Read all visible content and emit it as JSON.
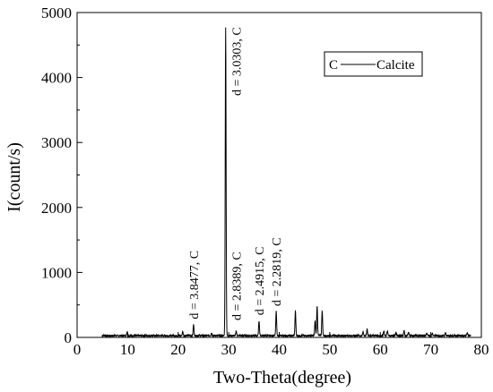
{
  "chart_data": {
    "type": "line",
    "title": "",
    "xlabel": "Two-Theta(degree)",
    "ylabel": "I(count/s)",
    "xlim": [
      0,
      80
    ],
    "ylim": [
      0,
      5000
    ],
    "xticks": [
      0,
      10,
      20,
      30,
      40,
      50,
      60,
      70,
      80
    ],
    "yticks": [
      0,
      1000,
      2000,
      3000,
      4000,
      5000
    ],
    "grid": false,
    "legend": {
      "position": "top-right",
      "entries": [
        {
          "marker": "C",
          "label": "Calcite"
        }
      ]
    },
    "series": [
      {
        "color": "#000000",
        "peaks": [
          {
            "x": 9.9,
            "y": 60
          },
          {
            "x": 20.9,
            "y": 60
          },
          {
            "x": 23.05,
            "y": 170
          },
          {
            "x": 26.6,
            "y": 40
          },
          {
            "x": 29.4,
            "y": 4750
          },
          {
            "x": 31.5,
            "y": 70
          },
          {
            "x": 36.0,
            "y": 230
          },
          {
            "x": 39.4,
            "y": 370
          },
          {
            "x": 43.2,
            "y": 380
          },
          {
            "x": 47.1,
            "y": 230
          },
          {
            "x": 47.5,
            "y": 460
          },
          {
            "x": 48.5,
            "y": 390
          },
          {
            "x": 56.6,
            "y": 60
          },
          {
            "x": 57.4,
            "y": 100
          },
          {
            "x": 60.7,
            "y": 70
          },
          {
            "x": 61.4,
            "y": 70
          },
          {
            "x": 63.1,
            "y": 40
          },
          {
            "x": 64.7,
            "y": 80
          },
          {
            "x": 65.6,
            "y": 50
          },
          {
            "x": 69.2,
            "y": 40
          },
          {
            "x": 70.3,
            "y": 40
          },
          {
            "x": 72.9,
            "y": 40
          },
          {
            "x": 77.2,
            "y": 40
          }
        ],
        "x_start": 5,
        "x_end": 78
      }
    ],
    "annotations": [
      {
        "text": "d = 3.8477, C",
        "x": 23.05,
        "y": 170
      },
      {
        "text": "d = 3.0303, C",
        "x": 29.4,
        "y": 4750
      },
      {
        "text": "d = 2.8389, C",
        "x": 31.5,
        "y": 70
      },
      {
        "text": "d = 2.4915, C",
        "x": 36.0,
        "y": 230
      },
      {
        "text": "d = 2.2819, C",
        "x": 39.4,
        "y": 370
      }
    ]
  }
}
